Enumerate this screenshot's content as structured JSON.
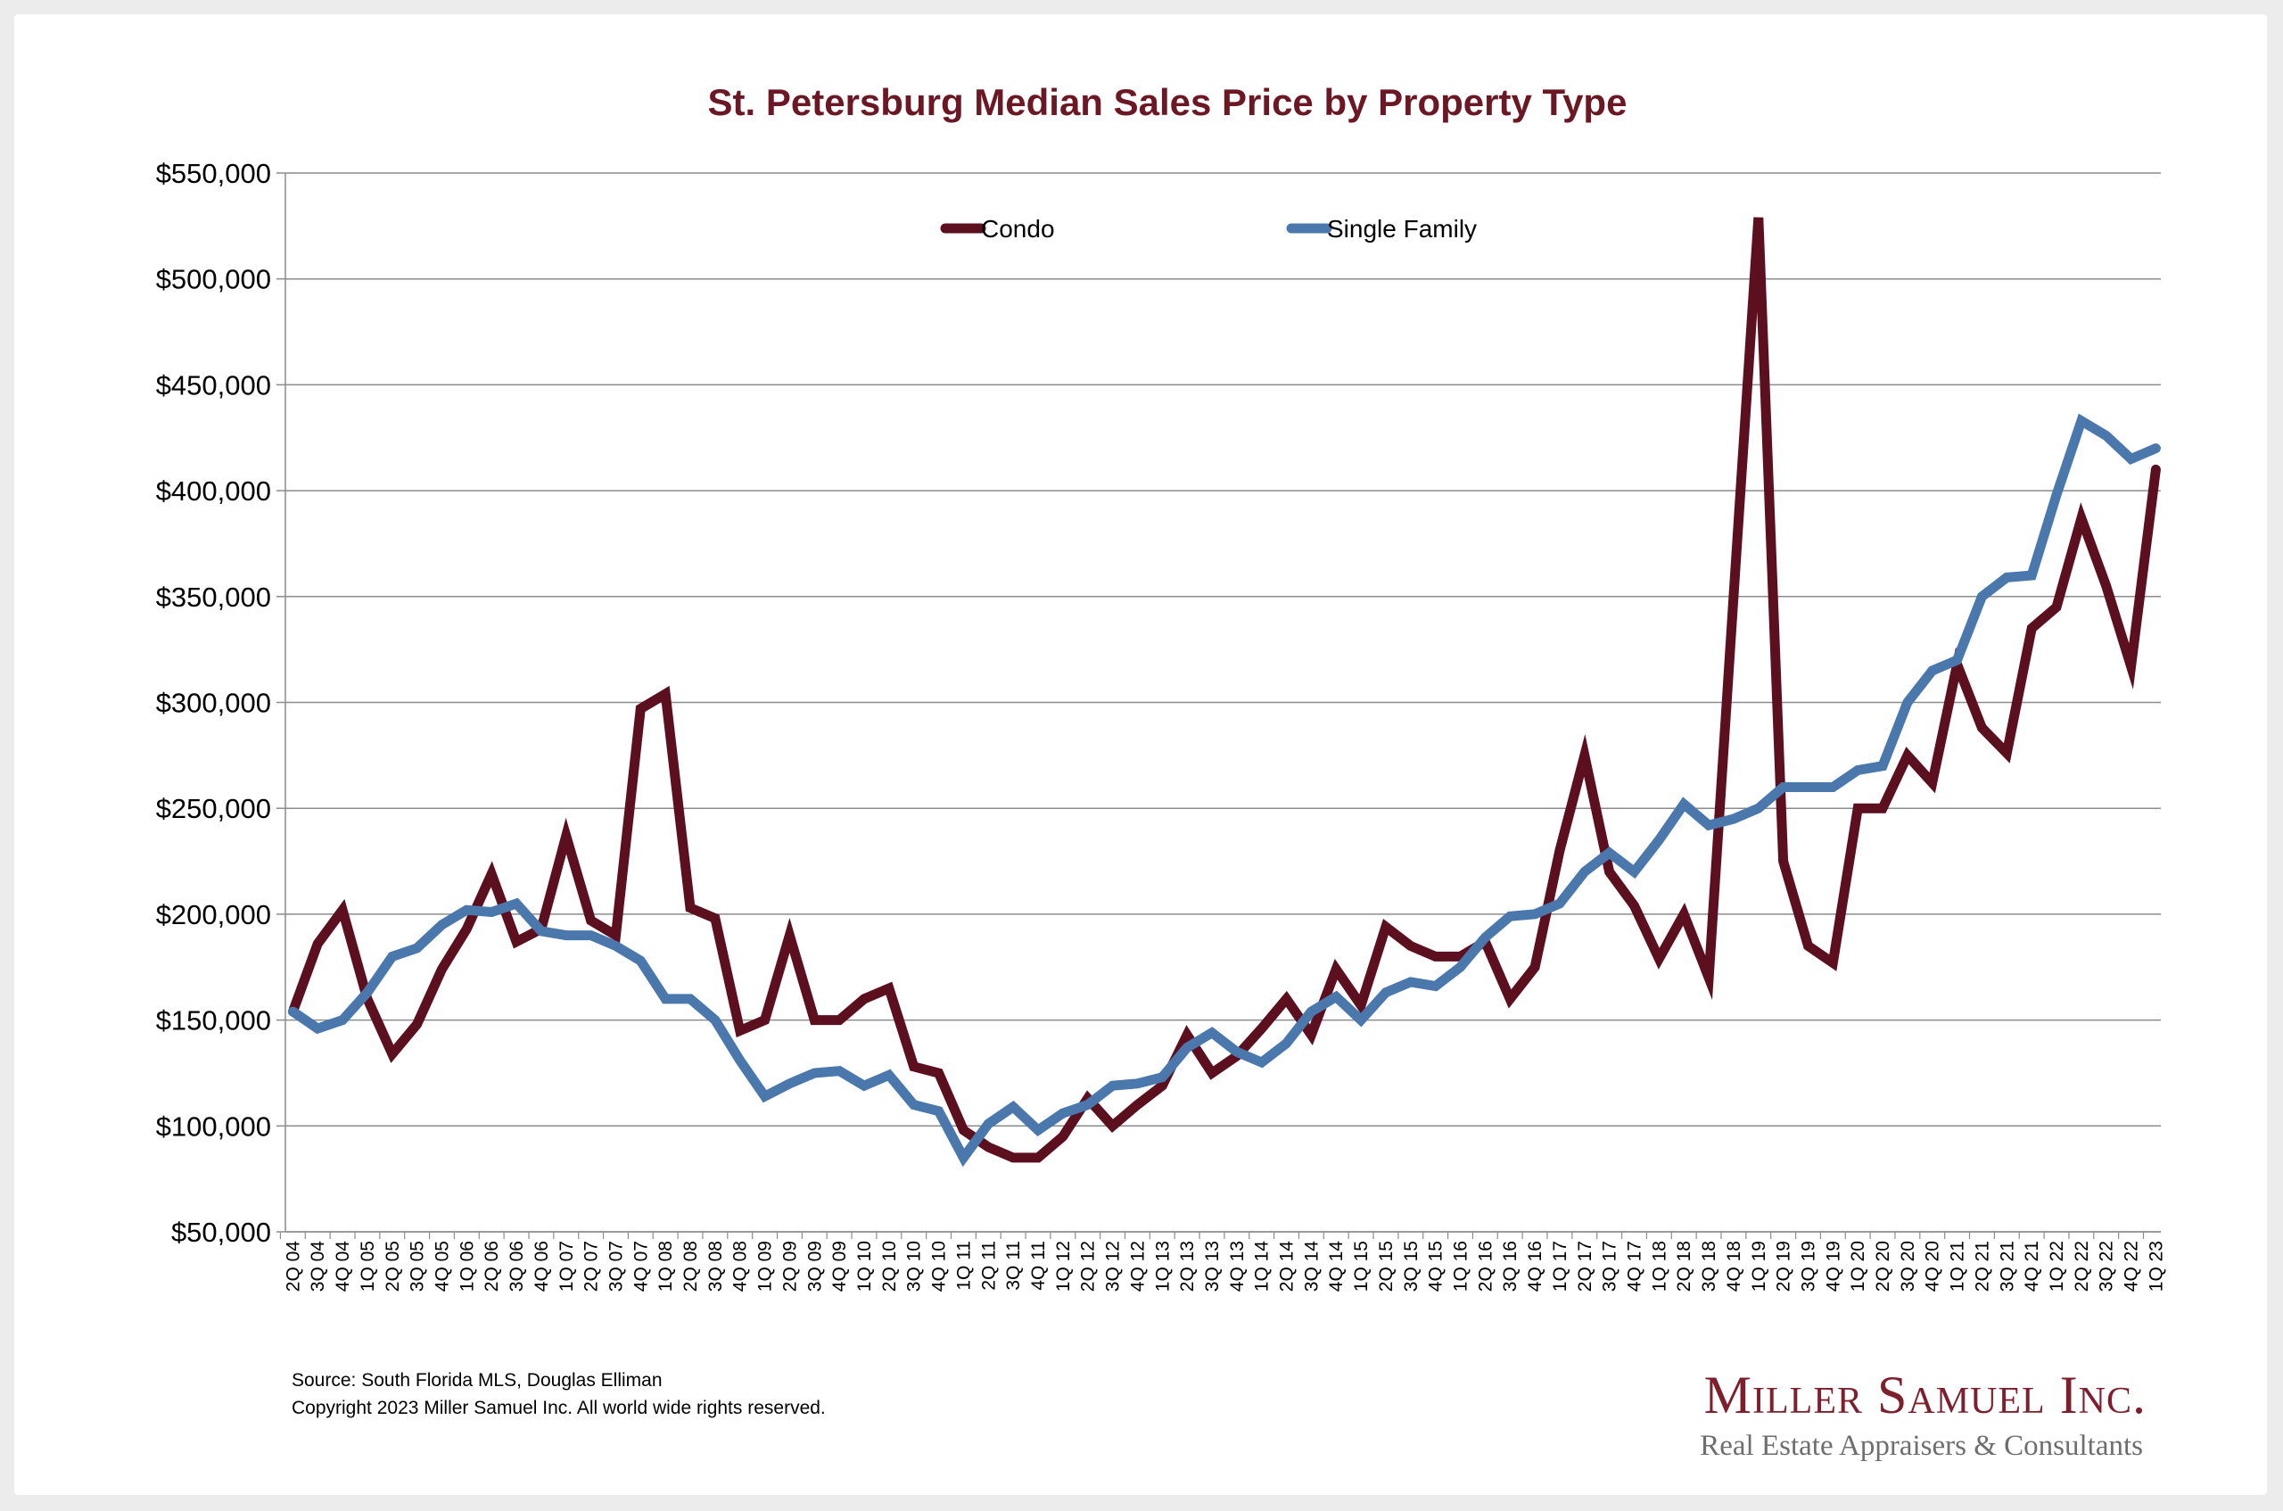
{
  "footer": {
    "source": "Source: South Florida MLS, Douglas Elliman",
    "copyright": "Copyright 2023 Miller Samuel Inc.  All world wide rights reserved."
  },
  "brand": {
    "name": "Miller Samuel Inc.",
    "tagline": "Real Estate Appraisers & Consultants"
  },
  "chart_data": {
    "type": "line",
    "title": "St. Petersburg Median Sales Price by Property Type",
    "xlabel": "",
    "ylabel": "",
    "ylim": [
      50000,
      550000
    ],
    "yticks": [
      50000,
      100000,
      150000,
      200000,
      250000,
      300000,
      350000,
      400000,
      450000,
      500000,
      550000
    ],
    "ytick_labels": [
      "$50,000",
      "$100,000",
      "$150,000",
      "$200,000",
      "$250,000",
      "$300,000",
      "$350,000",
      "$400,000",
      "$450,000",
      "$500,000",
      "$550,000"
    ],
    "grid": "horizontal",
    "legend_position": "top-center",
    "categories": [
      "2Q 04",
      "3Q 04",
      "4Q 04",
      "1Q 05",
      "2Q 05",
      "3Q 05",
      "4Q 05",
      "1Q 06",
      "2Q 06",
      "3Q 06",
      "4Q 06",
      "1Q 07",
      "2Q 07",
      "3Q 07",
      "4Q 07",
      "1Q 08",
      "2Q 08",
      "3Q 08",
      "4Q 08",
      "1Q 09",
      "2Q 09",
      "3Q 09",
      "4Q 09",
      "1Q 10",
      "2Q 10",
      "3Q 10",
      "4Q 10",
      "1Q 11",
      "2Q 11",
      "3Q 11",
      "4Q 11",
      "1Q 12",
      "2Q 12",
      "3Q 12",
      "4Q 12",
      "1Q 13",
      "2Q 13",
      "3Q 13",
      "4Q 13",
      "1Q 14",
      "2Q 14",
      "3Q 14",
      "4Q 14",
      "1Q 15",
      "2Q 15",
      "3Q 15",
      "4Q 15",
      "1Q 16",
      "2Q 16",
      "3Q 16",
      "4Q 16",
      "1Q 17",
      "2Q 17",
      "3Q 17",
      "4Q 17",
      "1Q 18",
      "2Q 18",
      "3Q 18",
      "4Q 18",
      "1Q 19",
      "2Q 19",
      "3Q 19",
      "4Q 19",
      "1Q 20",
      "2Q 20",
      "3Q 20",
      "4Q 20",
      "1Q 21",
      "2Q 21",
      "3Q 21",
      "4Q 21",
      "1Q 22",
      "2Q 22",
      "3Q 22",
      "4Q 22",
      "1Q 23"
    ],
    "series": [
      {
        "name": "Condo",
        "color": "#5c0f1e",
        "values": [
          154000,
          186000,
          202000,
          160000,
          134000,
          148000,
          174000,
          193000,
          219000,
          187000,
          193000,
          237000,
          197000,
          190000,
          297000,
          304000,
          203000,
          198000,
          145000,
          150000,
          190000,
          150000,
          150000,
          160000,
          165000,
          128000,
          125000,
          98000,
          90000,
          85000,
          85000,
          95000,
          113000,
          100000,
          110000,
          119000,
          143000,
          125000,
          133000,
          146000,
          160000,
          143000,
          174000,
          157000,
          194000,
          185000,
          180000,
          180000,
          187000,
          160000,
          175000,
          230000,
          275000,
          220000,
          204000,
          179000,
          200000,
          170000,
          350000,
          529000,
          225000,
          185000,
          177000,
          250000,
          250000,
          275000,
          262000,
          318000,
          288000,
          276000,
          335000,
          345000,
          387000,
          355000,
          317000,
          410000
        ]
      },
      {
        "name": "Single Family",
        "color": "#4a78ad",
        "values": [
          154000,
          146000,
          150000,
          163000,
          180000,
          184000,
          195000,
          202000,
          201000,
          205000,
          192000,
          190000,
          190000,
          185000,
          178000,
          160000,
          160000,
          150000,
          131000,
          114000,
          120000,
          125000,
          126000,
          119000,
          124000,
          110000,
          107000,
          85000,
          101000,
          109000,
          98000,
          106000,
          110000,
          119000,
          120000,
          123000,
          137000,
          144000,
          135000,
          130000,
          139000,
          154000,
          161000,
          150000,
          163000,
          168000,
          166000,
          175000,
          189000,
          199000,
          200000,
          205000,
          220000,
          229000,
          220000,
          235000,
          252000,
          242000,
          245000,
          250000,
          260000,
          260000,
          260000,
          268000,
          270000,
          300000,
          315000,
          320000,
          350000,
          359000,
          360000,
          398000,
          433000,
          426000,
          415000,
          420000
        ]
      }
    ]
  }
}
